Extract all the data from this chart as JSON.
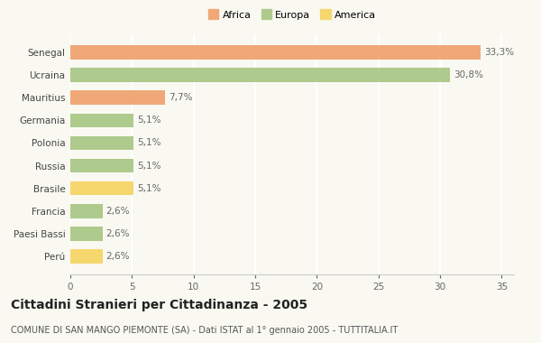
{
  "categories": [
    "Senegal",
    "Ucraina",
    "Mauritius",
    "Germania",
    "Polonia",
    "Russia",
    "Brasile",
    "Francia",
    "Paesi Bassi",
    "Perú"
  ],
  "values": [
    33.3,
    30.8,
    7.7,
    5.1,
    5.1,
    5.1,
    5.1,
    2.6,
    2.6,
    2.6
  ],
  "labels": [
    "33,3%",
    "30,8%",
    "7,7%",
    "5,1%",
    "5,1%",
    "5,1%",
    "5,1%",
    "2,6%",
    "2,6%",
    "2,6%"
  ],
  "colors": [
    "#F0A878",
    "#AECA8C",
    "#F0A878",
    "#AECA8C",
    "#AECA8C",
    "#AECA8C",
    "#F5D76E",
    "#AECA8C",
    "#AECA8C",
    "#F5D76E"
  ],
  "legend": [
    {
      "label": "Africa",
      "color": "#F0A878"
    },
    {
      "label": "Europa",
      "color": "#AECA8C"
    },
    {
      "label": "America",
      "color": "#F5D76E"
    }
  ],
  "xlim": [
    0,
    36
  ],
  "xticks": [
    0,
    5,
    10,
    15,
    20,
    25,
    30,
    35
  ],
  "title": "Cittadini Stranieri per Cittadinanza - 2005",
  "subtitle": "COMUNE DI SAN MANGO PIEMONTE (SA) - Dati ISTAT al 1° gennaio 2005 - TUTTITALIA.IT",
  "background_color": "#f9f9f2",
  "grid_color": "#ffffff",
  "bar_height": 0.62,
  "label_fontsize": 7.5,
  "tick_fontsize": 7.5,
  "title_fontsize": 10,
  "subtitle_fontsize": 7
}
